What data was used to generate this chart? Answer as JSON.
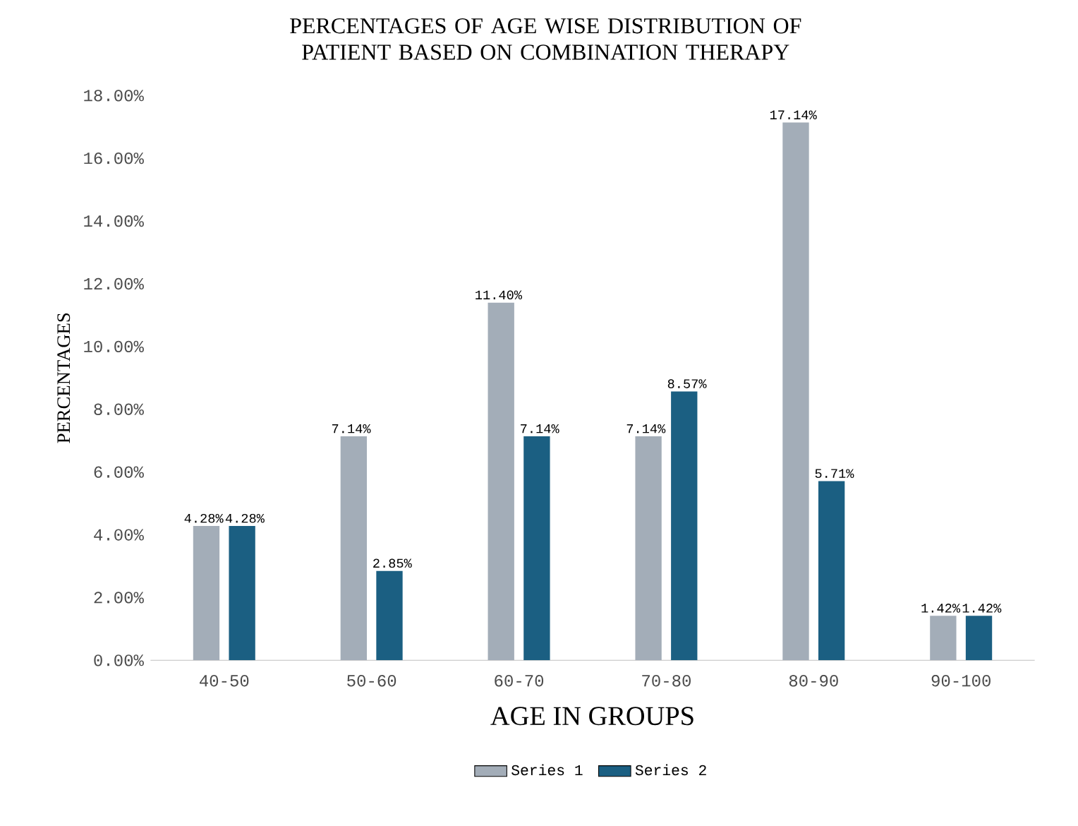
{
  "chart_data": {
    "type": "bar",
    "title": "PERCENTAGES OF AGE WISE DISTRIBUTION OF PATIENT BASED ON COMBINATION THERAPY",
    "xlabel": "AGE IN GROUPS",
    "ylabel": "PERCENTAGES",
    "categories": [
      "40-50",
      "50-60",
      "60-70",
      "70-80",
      "80-90",
      "90-100"
    ],
    "series": [
      {
        "name": "Series 1",
        "color": "#a3adb8",
        "values": [
          4.28,
          7.14,
          11.4,
          7.14,
          17.14,
          1.42
        ],
        "value_labels": [
          "4.28%",
          "7.14%",
          "11.40%",
          "7.14%",
          "17.14%",
          "1.42%"
        ]
      },
      {
        "name": "Series 2",
        "color": "#1b5f82",
        "values": [
          4.28,
          2.85,
          7.14,
          8.57,
          5.71,
          1.42
        ],
        "value_labels": [
          "4.28%",
          "2.85%",
          "7.14%",
          "8.57%",
          "5.71%",
          "1.42%"
        ]
      }
    ],
    "ylim": [
      0,
      18
    ],
    "yticks": [
      {
        "value": 0,
        "label": "0.00%"
      },
      {
        "value": 2,
        "label": "2.00%"
      },
      {
        "value": 4,
        "label": "4.00%"
      },
      {
        "value": 6,
        "label": "6.00%"
      },
      {
        "value": 8,
        "label": "8.00%"
      },
      {
        "value": 10,
        "label": "10.00%"
      },
      {
        "value": 12,
        "label": "12.00%"
      },
      {
        "value": 14,
        "label": "14.00%"
      },
      {
        "value": 16,
        "label": "16.00%"
      },
      {
        "value": 18,
        "label": "18.00%"
      }
    ],
    "grid": false,
    "legend": "bottom"
  }
}
